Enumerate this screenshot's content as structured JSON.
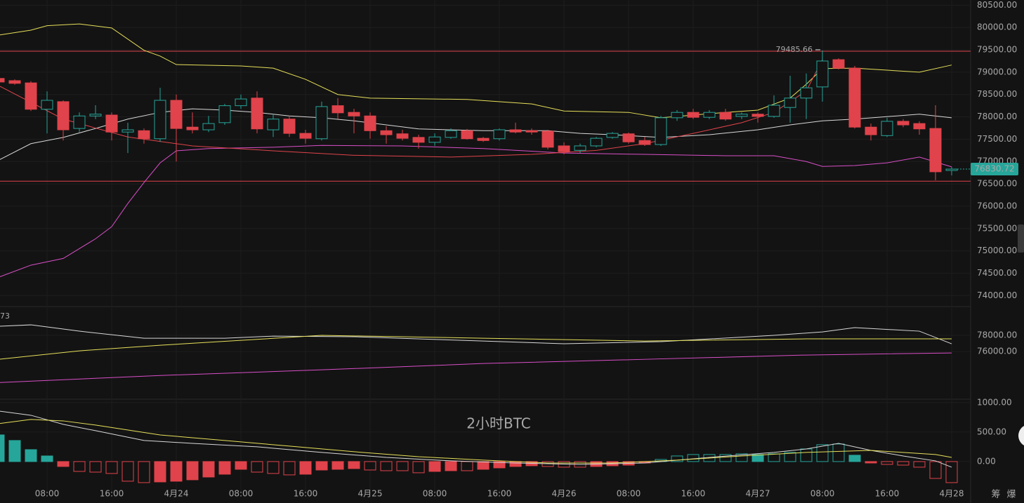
{
  "chart_data": [
    {
      "type": "candlestick",
      "categories": [
        null,
        null,
        null,
        "08:00",
        null,
        null,
        null,
        "16:00",
        null,
        null,
        null,
        "4月24",
        null,
        null,
        null,
        "08:00",
        null,
        null,
        null,
        "16:00",
        null,
        null,
        null,
        "4月25",
        null,
        null,
        null,
        "08:00",
        null,
        null,
        null,
        "16:00",
        null,
        null,
        null,
        "4月26",
        null,
        null,
        null,
        "08:00",
        null,
        null,
        null,
        "16:00",
        null,
        null,
        null,
        "4月27",
        null,
        null,
        null,
        "08:00",
        null,
        null,
        null,
        "16:00",
        null,
        null,
        null,
        "4月28"
      ],
      "open": [
        78860,
        78810,
        78760,
        78170,
        78340,
        77740,
        78020,
        78040,
        77660,
        77690,
        77510,
        78370,
        77770,
        77710,
        77870,
        78250,
        78420,
        77710,
        77950,
        77630,
        77510,
        78250,
        78100,
        78020,
        77690,
        77620,
        77540,
        77430,
        77540,
        77690,
        77520,
        77510,
        77710,
        77690,
        77680,
        77350,
        77250,
        77350,
        77540,
        77620,
        77470,
        77380,
        77980,
        78100,
        77990,
        78100,
        78010,
        78060,
        78010,
        78210,
        78420,
        78670,
        79280,
        79090,
        77770,
        77580,
        77900,
        77850,
        77740,
        76800
      ],
      "high": [
        78890,
        78840,
        78800,
        78570,
        78370,
        78100,
        78260,
        78100,
        77870,
        77740,
        78650,
        78500,
        78100,
        78020,
        78290,
        78500,
        78570,
        78060,
        78020,
        77710,
        78340,
        78420,
        78180,
        78100,
        77790,
        77710,
        77600,
        77630,
        77740,
        77730,
        77550,
        77740,
        77870,
        77740,
        77710,
        77430,
        77400,
        77550,
        77660,
        77650,
        77550,
        78020,
        78150,
        78180,
        78150,
        78180,
        78100,
        78100,
        78480,
        78920,
        78970,
        79485.66,
        79310,
        79140,
        77850,
        77980,
        77950,
        77900,
        78260,
        76880
      ],
      "low": [
        78730,
        78720,
        78130,
        77630,
        77470,
        77660,
        77950,
        77470,
        77190,
        77400,
        77440,
        77000,
        77630,
        77660,
        77820,
        78180,
        77630,
        77550,
        77550,
        77400,
        77470,
        77950,
        77630,
        77510,
        77400,
        77470,
        77290,
        77350,
        77510,
        77490,
        77440,
        77470,
        77630,
        77600,
        77270,
        77160,
        77190,
        77320,
        77510,
        77400,
        77350,
        77350,
        77910,
        77950,
        77950,
        77910,
        77950,
        77870,
        77980,
        77870,
        77950,
        78340,
        79060,
        77740,
        77470,
        77550,
        77770,
        77600,
        76580,
        76690
      ],
      "close": [
        78780,
        78750,
        78170,
        78370,
        77710,
        78020,
        78060,
        77660,
        77710,
        77510,
        78370,
        77740,
        77710,
        77850,
        78250,
        78400,
        77730,
        77950,
        77630,
        77520,
        78230,
        78090,
        78020,
        77690,
        77600,
        77520,
        77430,
        77550,
        77690,
        77510,
        77470,
        77710,
        77660,
        77660,
        77320,
        77220,
        77350,
        77520,
        77630,
        77440,
        77380,
        77980,
        78100,
        77990,
        78100,
        77950,
        78060,
        78010,
        78260,
        78420,
        78650,
        79250,
        79090,
        77770,
        77600,
        77900,
        77820,
        77730,
        76770,
        76830.72
      ],
      "up_color": "#26a69a",
      "down_color": "#e0434b",
      "ylim": [
        73800,
        80600
      ],
      "yticks": [
        {
          "value": 74000,
          "label": "74000.00"
        },
        {
          "value": 74500,
          "label": "74500.00"
        },
        {
          "value": 75000,
          "label": "75000.00"
        },
        {
          "value": 75500,
          "label": "75500.00"
        },
        {
          "value": 76000,
          "label": "76000.00"
        },
        {
          "value": 76500,
          "label": "76500.00"
        },
        {
          "value": 77000,
          "label": "77000.00"
        },
        {
          "value": 77500,
          "label": "77500.00"
        },
        {
          "value": 78000,
          "label": "78000.00"
        },
        {
          "value": 78500,
          "label": "78500.00"
        },
        {
          "value": 79000,
          "label": "79000.00"
        },
        {
          "value": 79500,
          "label": "79500.00"
        },
        {
          "value": 80000,
          "label": "80000.00"
        },
        {
          "value": 80500,
          "label": "80500.00"
        }
      ],
      "grid": true,
      "hlines": [
        79470,
        76560
      ],
      "hline_color": "#e0434b",
      "overlays": [
        {
          "color": "#e6e05a",
          "x": [
            0,
            2,
            3,
            5,
            7,
            9,
            10,
            11,
            15,
            17,
            19,
            21,
            23,
            29,
            33,
            35,
            39,
            41,
            45,
            47,
            49,
            50,
            51,
            53,
            57,
            59
          ],
          "values": [
            79830,
            79940,
            80040,
            80080,
            79990,
            79490,
            79360,
            79170,
            79140,
            79090,
            78840,
            78500,
            78420,
            78390,
            78290,
            78130,
            78100,
            77980,
            78100,
            78150,
            78420,
            78730,
            79080,
            79090,
            79000,
            79160
          ]
        },
        {
          "color": "#d8d8d8",
          "x": [
            0,
            2,
            4,
            6,
            8,
            10,
            12,
            14,
            16,
            18,
            20,
            22,
            24,
            26,
            30,
            34,
            36,
            38,
            41,
            44,
            47,
            49,
            51,
            53,
            57,
            59
          ],
          "values": [
            77030,
            77400,
            77540,
            77740,
            77950,
            78100,
            78180,
            78150,
            78100,
            78020,
            77980,
            77910,
            77820,
            77730,
            77690,
            77690,
            77630,
            77600,
            77540,
            77600,
            77710,
            77820,
            77910,
            77950,
            78060,
            77980
          ]
        },
        {
          "color": "#d94fc8",
          "x": [
            0,
            2,
            4,
            6,
            7,
            8,
            9,
            10,
            11,
            13,
            17,
            20,
            25,
            30,
            35,
            40,
            45,
            48,
            50,
            51,
            53,
            55,
            57,
            59
          ],
          "values": [
            74410,
            74680,
            74830,
            75270,
            75540,
            76060,
            76530,
            76970,
            77240,
            77290,
            77320,
            77360,
            77350,
            77290,
            77190,
            77160,
            77130,
            77130,
            77000,
            76890,
            76910,
            76970,
            77100,
            76880
          ]
        },
        {
          "color": "#e0434b",
          "x": [
            0,
            4,
            8,
            12,
            17,
            22,
            28,
            33,
            37,
            40,
            43,
            46,
            48,
            50,
            51
          ],
          "values": [
            78700,
            77950,
            77550,
            77350,
            77240,
            77140,
            77100,
            77160,
            77250,
            77400,
            77630,
            77870,
            78100,
            78580,
            79280
          ]
        }
      ]
    },
    {
      "type": "line",
      "text": "73",
      "ylim": [
        70200,
        81300
      ],
      "yticks": [
        {
          "value": 76000,
          "label": "76000.00"
        },
        {
          "value": 78000,
          "label": "78000.00"
        }
      ],
      "series": [
        {
          "color": "#d8d8d8",
          "x": [
            0,
            2,
            5,
            9,
            14,
            17,
            22,
            30,
            35,
            41,
            48,
            51,
            53,
            57,
            59
          ],
          "values": [
            79130,
            79300,
            78520,
            77650,
            77650,
            77910,
            77830,
            77300,
            76960,
            77220,
            78000,
            78430,
            78960,
            78520,
            76960
          ]
        },
        {
          "color": "#e6e05a",
          "x": [
            0,
            5,
            10,
            15,
            20,
            30,
            40,
            50,
            59
          ],
          "values": [
            75040,
            76090,
            76780,
            77390,
            78000,
            77650,
            77300,
            77570,
            77570
          ]
        },
        {
          "color": "#d94fc8",
          "x": [
            0,
            10,
            20,
            30,
            40,
            50,
            59
          ],
          "values": [
            72170,
            73040,
            73740,
            74520,
            75040,
            75570,
            75830
          ]
        }
      ]
    },
    {
      "type": "macd",
      "annotation": "2小时BTC",
      "ylim": [
        -560,
        1070
      ],
      "yticks": [
        {
          "value": 0,
          "label": "0.00"
        },
        {
          "value": 500,
          "label": "500.00"
        },
        {
          "value": 1000,
          "label": "1000.00"
        }
      ],
      "histogram": [
        452,
        357,
        202,
        95,
        -83,
        -167,
        -179,
        -202,
        -333,
        -357,
        -345,
        -333,
        -309,
        -262,
        -214,
        -131,
        -179,
        -202,
        -226,
        -214,
        -143,
        -131,
        -119,
        -143,
        -155,
        -155,
        -190,
        -167,
        -155,
        -155,
        -131,
        -107,
        -83,
        -71,
        -83,
        -95,
        -95,
        -83,
        -71,
        -60,
        -24,
        36,
        95,
        119,
        119,
        119,
        131,
        119,
        131,
        155,
        214,
        286,
        298,
        107,
        -24,
        -48,
        -60,
        -95,
        -286,
        -357
      ],
      "up_color": "#26a69a",
      "down_color": "#e0434b",
      "series": [
        {
          "color": "#d8d8d8",
          "x": [
            0,
            2,
            4,
            6,
            9,
            12,
            16,
            20,
            24,
            28,
            32,
            36,
            40,
            44,
            48,
            50,
            52,
            54,
            56,
            58,
            59
          ],
          "values": [
            857,
            785,
            631,
            524,
            357,
            309,
            250,
            155,
            71,
            12,
            -24,
            -48,
            -24,
            71,
            155,
            214,
            309,
            190,
            95,
            12,
            -95
          ]
        },
        {
          "color": "#e6e05a",
          "x": [
            0,
            2,
            4,
            6,
            10,
            14,
            18,
            22,
            26,
            30,
            34,
            38,
            42,
            46,
            50,
            54,
            58,
            59
          ],
          "values": [
            643,
            714,
            690,
            619,
            452,
            357,
            262,
            167,
            83,
            24,
            -24,
            -24,
            24,
            95,
            155,
            190,
            119,
            71
          ]
        }
      ]
    }
  ],
  "toolbar": [
    "筹",
    "爆"
  ]
}
